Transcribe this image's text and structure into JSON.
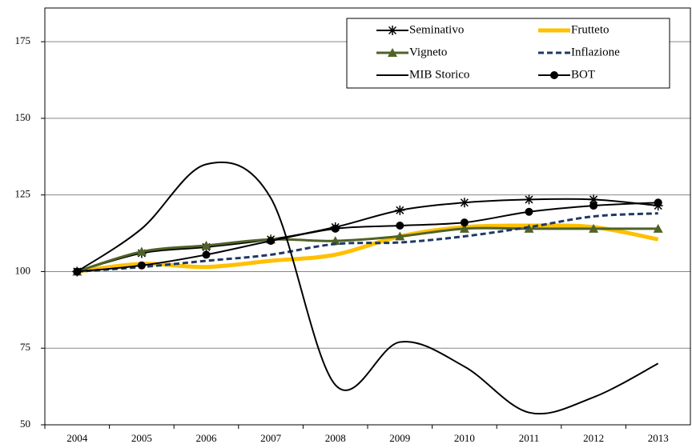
{
  "chart_data": {
    "type": "line",
    "categories": [
      "2004",
      "2005",
      "2006",
      "2007",
      "2008",
      "2009",
      "2010",
      "2011",
      "2012",
      "2013"
    ],
    "ylim": [
      50,
      186
    ],
    "yticks": [
      50,
      75,
      100,
      125,
      150,
      175
    ],
    "grid": true,
    "legend": "top-right",
    "series": [
      {
        "name": "Seminativo",
        "color": "#000000",
        "width": 2,
        "marker": "star",
        "values": [
          100,
          106,
          108,
          110.5,
          114.5,
          120,
          122.5,
          123.5,
          123.5,
          121.5
        ]
      },
      {
        "name": "Frutteto",
        "color": "#ffc000",
        "width": 5,
        "marker": "none",
        "values": [
          100,
          102.5,
          101.5,
          103.5,
          105.5,
          111.5,
          114.5,
          115,
          114.5,
          110.5
        ]
      },
      {
        "name": "Vigneto",
        "color": "#4f6228",
        "width": 3,
        "marker": "triangle",
        "values": [
          100,
          106.5,
          108.5,
          110.5,
          110,
          111.5,
          114,
          114,
          114,
          114
        ]
      },
      {
        "name": "Inflazione",
        "color": "#1f3864",
        "width": 3,
        "marker": "none",
        "dashed": true,
        "values": [
          100,
          101.5,
          103.5,
          105.5,
          109,
          109.5,
          111.5,
          114.5,
          118,
          119
        ]
      },
      {
        "name": "MIB Storico",
        "color": "#000000",
        "width": 2,
        "marker": "none",
        "values": [
          100,
          114,
          135,
          124,
          63,
          77,
          69,
          54,
          59,
          70
        ]
      },
      {
        "name": "BOT",
        "color": "#000000",
        "width": 2,
        "marker": "circle",
        "values": [
          100,
          102,
          105.5,
          110,
          114,
          115,
          116,
          119.5,
          121.5,
          122.5
        ]
      }
    ]
  }
}
